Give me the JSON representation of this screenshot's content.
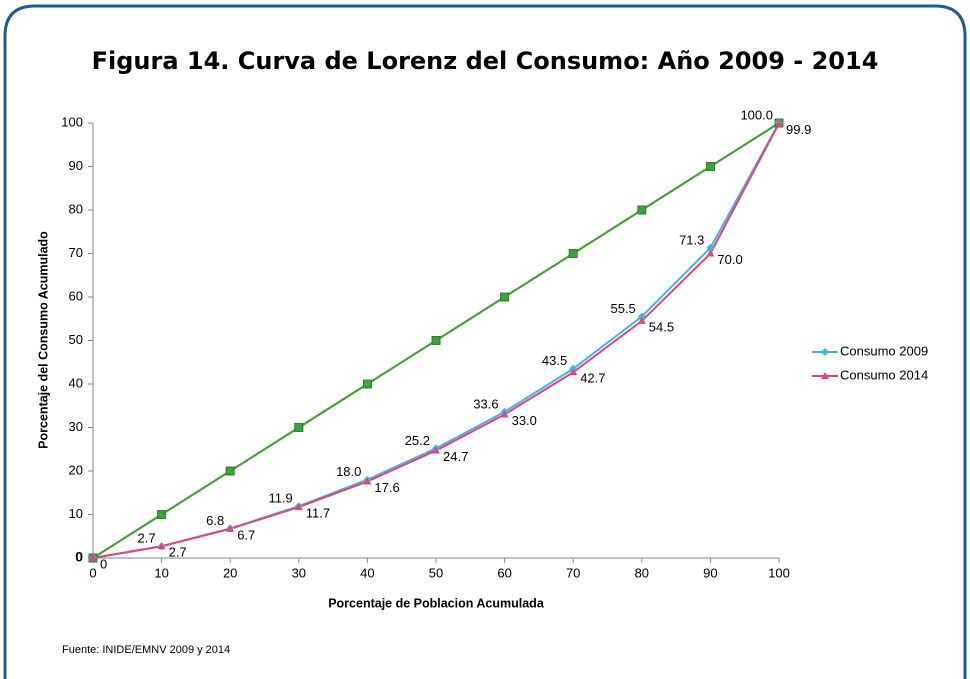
{
  "chart_data": {
    "type": "line",
    "title": "Figura 14. Curva de Lorenz del Consumo: Año 2009 - 2014",
    "xlabel": "Porcentaje de Poblacion Acumulada",
    "ylabel": "Porcentaje del Consumo Acumulado",
    "source": "Fuente: INIDE/EMNV 2009 y 2014",
    "x": [
      0,
      10,
      20,
      30,
      40,
      50,
      60,
      70,
      80,
      90,
      100
    ],
    "series": [
      {
        "color": "#f79646",
        "marker": "square",
        "values": [
          0,
          10,
          20,
          30,
          40,
          50,
          60,
          70,
          80,
          90,
          100
        ]
      },
      {
        "color": "#3aa33a",
        "marker": "square",
        "values": [
          0,
          10,
          20,
          30,
          40,
          50,
          60,
          70,
          80,
          90,
          100
        ]
      },
      {
        "name": "Consumo 2009",
        "color": "#41b4e6",
        "marker": "diamond",
        "label_side": "left",
        "values": [
          0,
          2.7,
          6.8,
          11.9,
          18.0,
          25.2,
          33.6,
          43.5,
          55.5,
          71.3,
          100.0
        ],
        "value_labels": [
          null,
          "2.7",
          "6.8",
          "11.9",
          "18.0",
          "25.2",
          "33.6",
          "43.5",
          "55.5",
          "71.3",
          "100.0"
        ]
      },
      {
        "name": "Consumo 2014",
        "color": "#e0457b",
        "marker": "triangle",
        "label_side": "right",
        "values": [
          0,
          2.7,
          6.7,
          11.7,
          17.6,
          24.7,
          33.0,
          42.7,
          54.5,
          70.0,
          99.9
        ],
        "value_labels": [
          "0",
          "2.7",
          "6.7",
          "11.7",
          "17.6",
          "24.7",
          "33.0",
          "42.7",
          "54.5",
          "70.0",
          "99.9"
        ]
      }
    ],
    "xlim": [
      0,
      100
    ],
    "xticks": [
      0,
      10,
      20,
      30,
      40,
      50,
      60,
      70,
      80,
      90,
      100
    ],
    "ylim": [
      0,
      100
    ],
    "yticks": [
      0,
      10,
      20,
      30,
      40,
      50,
      60,
      70,
      80,
      90,
      100
    ],
    "grid": false,
    "legend": "right"
  }
}
